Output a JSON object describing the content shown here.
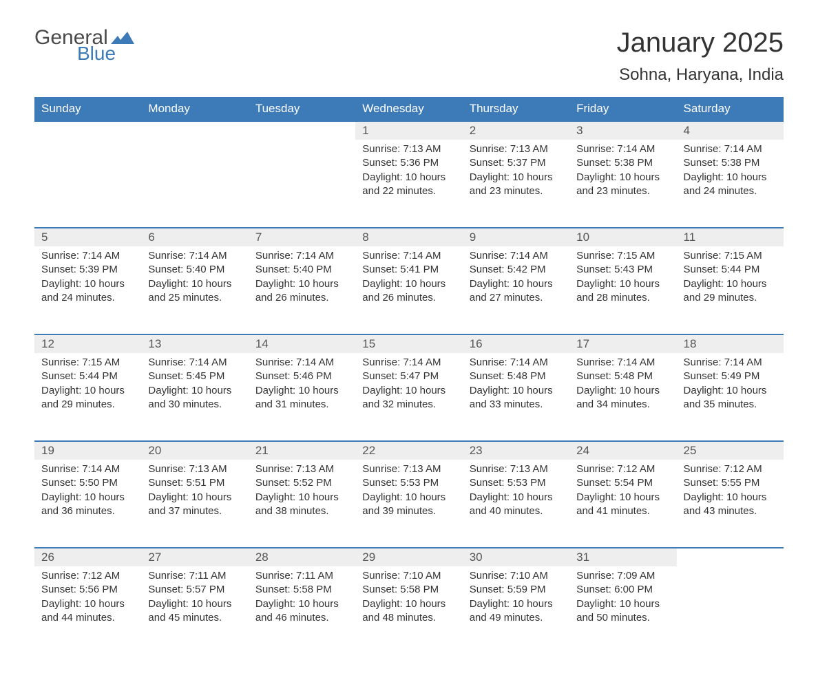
{
  "logo": {
    "word1": "General",
    "word2": "Blue",
    "flag_color": "#3d7ab8",
    "text_color_gray": "#4a4a4a"
  },
  "title": "January 2025",
  "location": "Sohna, Haryana, India",
  "colors": {
    "header_bg": "#3d7ab8",
    "header_text": "#ffffff",
    "daynum_bg": "#eeeeee",
    "border": "#3d7ab8",
    "body_text": "#333333"
  },
  "day_headers": [
    "Sunday",
    "Monday",
    "Tuesday",
    "Wednesday",
    "Thursday",
    "Friday",
    "Saturday"
  ],
  "weeks": [
    [
      null,
      null,
      null,
      {
        "n": "1",
        "sr": "7:13 AM",
        "ss": "5:36 PM",
        "dl": "10 hours and 22 minutes."
      },
      {
        "n": "2",
        "sr": "7:13 AM",
        "ss": "5:37 PM",
        "dl": "10 hours and 23 minutes."
      },
      {
        "n": "3",
        "sr": "7:14 AM",
        "ss": "5:38 PM",
        "dl": "10 hours and 23 minutes."
      },
      {
        "n": "4",
        "sr": "7:14 AM",
        "ss": "5:38 PM",
        "dl": "10 hours and 24 minutes."
      }
    ],
    [
      {
        "n": "5",
        "sr": "7:14 AM",
        "ss": "5:39 PM",
        "dl": "10 hours and 24 minutes."
      },
      {
        "n": "6",
        "sr": "7:14 AM",
        "ss": "5:40 PM",
        "dl": "10 hours and 25 minutes."
      },
      {
        "n": "7",
        "sr": "7:14 AM",
        "ss": "5:40 PM",
        "dl": "10 hours and 26 minutes."
      },
      {
        "n": "8",
        "sr": "7:14 AM",
        "ss": "5:41 PM",
        "dl": "10 hours and 26 minutes."
      },
      {
        "n": "9",
        "sr": "7:14 AM",
        "ss": "5:42 PM",
        "dl": "10 hours and 27 minutes."
      },
      {
        "n": "10",
        "sr": "7:15 AM",
        "ss": "5:43 PM",
        "dl": "10 hours and 28 minutes."
      },
      {
        "n": "11",
        "sr": "7:15 AM",
        "ss": "5:44 PM",
        "dl": "10 hours and 29 minutes."
      }
    ],
    [
      {
        "n": "12",
        "sr": "7:15 AM",
        "ss": "5:44 PM",
        "dl": "10 hours and 29 minutes."
      },
      {
        "n": "13",
        "sr": "7:14 AM",
        "ss": "5:45 PM",
        "dl": "10 hours and 30 minutes."
      },
      {
        "n": "14",
        "sr": "7:14 AM",
        "ss": "5:46 PM",
        "dl": "10 hours and 31 minutes."
      },
      {
        "n": "15",
        "sr": "7:14 AM",
        "ss": "5:47 PM",
        "dl": "10 hours and 32 minutes."
      },
      {
        "n": "16",
        "sr": "7:14 AM",
        "ss": "5:48 PM",
        "dl": "10 hours and 33 minutes."
      },
      {
        "n": "17",
        "sr": "7:14 AM",
        "ss": "5:48 PM",
        "dl": "10 hours and 34 minutes."
      },
      {
        "n": "18",
        "sr": "7:14 AM",
        "ss": "5:49 PM",
        "dl": "10 hours and 35 minutes."
      }
    ],
    [
      {
        "n": "19",
        "sr": "7:14 AM",
        "ss": "5:50 PM",
        "dl": "10 hours and 36 minutes."
      },
      {
        "n": "20",
        "sr": "7:13 AM",
        "ss": "5:51 PM",
        "dl": "10 hours and 37 minutes."
      },
      {
        "n": "21",
        "sr": "7:13 AM",
        "ss": "5:52 PM",
        "dl": "10 hours and 38 minutes."
      },
      {
        "n": "22",
        "sr": "7:13 AM",
        "ss": "5:53 PM",
        "dl": "10 hours and 39 minutes."
      },
      {
        "n": "23",
        "sr": "7:13 AM",
        "ss": "5:53 PM",
        "dl": "10 hours and 40 minutes."
      },
      {
        "n": "24",
        "sr": "7:12 AM",
        "ss": "5:54 PM",
        "dl": "10 hours and 41 minutes."
      },
      {
        "n": "25",
        "sr": "7:12 AM",
        "ss": "5:55 PM",
        "dl": "10 hours and 43 minutes."
      }
    ],
    [
      {
        "n": "26",
        "sr": "7:12 AM",
        "ss": "5:56 PM",
        "dl": "10 hours and 44 minutes."
      },
      {
        "n": "27",
        "sr": "7:11 AM",
        "ss": "5:57 PM",
        "dl": "10 hours and 45 minutes."
      },
      {
        "n": "28",
        "sr": "7:11 AM",
        "ss": "5:58 PM",
        "dl": "10 hours and 46 minutes."
      },
      {
        "n": "29",
        "sr": "7:10 AM",
        "ss": "5:58 PM",
        "dl": "10 hours and 48 minutes."
      },
      {
        "n": "30",
        "sr": "7:10 AM",
        "ss": "5:59 PM",
        "dl": "10 hours and 49 minutes."
      },
      {
        "n": "31",
        "sr": "7:09 AM",
        "ss": "6:00 PM",
        "dl": "10 hours and 50 minutes."
      },
      null
    ]
  ],
  "labels": {
    "sunrise": "Sunrise:",
    "sunset": "Sunset:",
    "daylight": "Daylight:"
  }
}
